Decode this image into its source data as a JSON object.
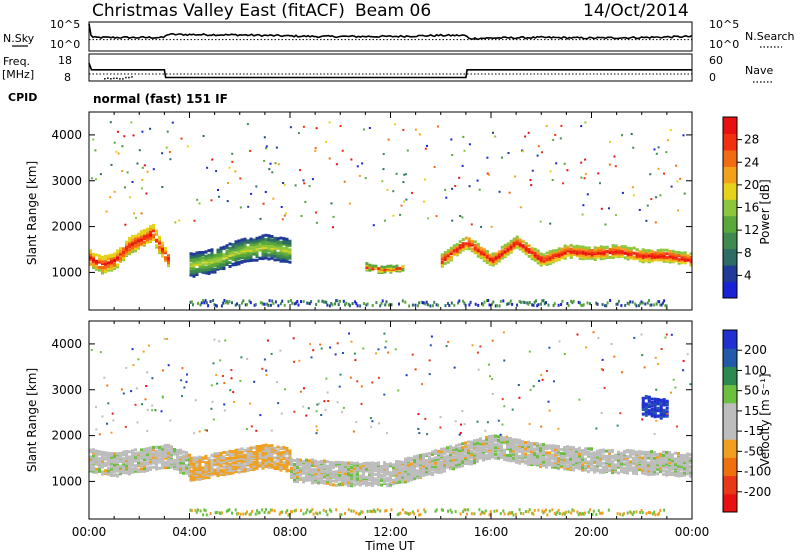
{
  "header": {
    "title": "Christmas Valley East (fitACF)",
    "beam": "Beam 06",
    "date": "14/Oct/2014"
  },
  "left_labels": {
    "nsky": "N.Sky",
    "freq": "Freq.",
    "freq_unit": "[MHz]",
    "cpid": "CPID"
  },
  "right_labels": {
    "nsearch": "N.Search",
    "nave": "Nave"
  },
  "cpid_text": "normal (fast) 151 IF",
  "colors": {
    "power_scale": [
      "#1a22d6",
      "#203a98",
      "#2e6b66",
      "#3f8a4e",
      "#5aa73a",
      "#8cc63e",
      "#e6d21a",
      "#f2a21a",
      "#f26a12",
      "#f23010",
      "#e81010"
    ],
    "velocity_scale": [
      "#2030d0",
      "#205aa8",
      "#2a8a50",
      "#6cc040",
      "#bdbdbd",
      "#bdbdbd",
      "#f0a020",
      "#f07010",
      "#e83818",
      "#e81010"
    ]
  },
  "chart_data": [
    {
      "type": "line",
      "title": "",
      "left_axis": {
        "label": "N.Sky",
        "ticks": [
          "10^5",
          "10^0"
        ]
      },
      "right_axis": {
        "label": "N.Search",
        "ticks": [
          "10^5",
          "10^0"
        ]
      },
      "series": [
        {
          "name": "N.Sky",
          "x": [
            0,
            0.1,
            3,
            3.1,
            6,
            9,
            12,
            14,
            15,
            15.1,
            16,
            18,
            20,
            22,
            24
          ],
          "y": [
            5,
            2.4,
            2.4,
            3.0,
            2.9,
            2.6,
            2.6,
            2.8,
            2.8,
            2.2,
            2.3,
            2.4,
            2.3,
            2.4,
            2.6
          ]
        },
        {
          "name": "N.Search",
          "x": [
            0,
            24
          ],
          "y": [
            2.0,
            2.0
          ]
        }
      ]
    },
    {
      "type": "line",
      "left_axis": {
        "label": "Freq. [MHz]",
        "ticks": [
          "18",
          "8"
        ]
      },
      "right_axis": {
        "label": "Nave",
        "ticks": [
          "60",
          "0"
        ]
      },
      "series": [
        {
          "name": "Freq.",
          "x": [
            0,
            0.1,
            3,
            3.05,
            15,
            15.05,
            24
          ],
          "y": [
            18,
            14,
            14,
            9.5,
            9.5,
            14,
            14
          ]
        },
        {
          "name": "Nave",
          "x": [
            0,
            24
          ],
          "y": [
            15,
            15
          ]
        }
      ]
    },
    {
      "type": "heatmap",
      "title": "",
      "xlabel": "",
      "ylabel": "Slant Range [km]",
      "x_ticks": [
        "00:00",
        "04:00",
        "08:00",
        "12:00",
        "16:00",
        "20:00",
        "00:00"
      ],
      "y_ticks": [
        1000,
        2000,
        3000,
        4000
      ],
      "ylim": [
        180,
        4500
      ],
      "colorbar": {
        "label": "Power [dB]",
        "ticks": [
          4,
          8,
          12,
          16,
          20,
          24,
          28
        ]
      },
      "bands": [
        {
          "x": [
            0,
            0.5,
            1,
            1.5,
            2,
            2.5,
            3,
            3.2
          ],
          "center": [
            1350,
            1200,
            1300,
            1600,
            1750,
            1900,
            1400,
            1300
          ],
          "width": 350,
          "level": 28
        },
        {
          "x": [
            4,
            5,
            6,
            7,
            8
          ],
          "center": [
            1200,
            1300,
            1500,
            1600,
            1500
          ],
          "width": 500,
          "level": 16
        },
        {
          "x": [
            11,
            11.5,
            12,
            12.5
          ],
          "center": [
            1150,
            1100,
            1100,
            1150
          ],
          "width": 120,
          "level": 24
        },
        {
          "x": [
            14,
            15,
            16,
            17,
            18,
            19,
            20,
            21,
            22,
            23,
            24
          ],
          "center": [
            1300,
            1700,
            1300,
            1700,
            1300,
            1500,
            1450,
            1500,
            1400,
            1400,
            1300
          ],
          "width": 250,
          "level": 28
        }
      ]
    },
    {
      "type": "heatmap",
      "title": "",
      "xlabel": "Time UT",
      "ylabel": "Slant Range [km]",
      "x_ticks": [
        "00:00",
        "04:00",
        "08:00",
        "12:00",
        "16:00",
        "20:00",
        "00:00"
      ],
      "y_ticks": [
        1000,
        2000,
        3000,
        4000
      ],
      "ylim": [
        180,
        4500
      ],
      "colorbar": {
        "label": "Velocity [m s⁻¹]",
        "ticks": [
          200,
          100,
          50,
          15,
          -15,
          -50,
          -100,
          -200
        ]
      },
      "bands": [
        {
          "x": [
            0,
            1,
            2,
            3,
            4
          ],
          "center": [
            1500,
            1400,
            1500,
            1600,
            1400
          ],
          "width": 500,
          "level": 0
        },
        {
          "x": [
            4,
            5,
            6,
            7,
            8
          ],
          "center": [
            1300,
            1400,
            1500,
            1600,
            1500
          ],
          "width": 500,
          "level": -50
        },
        {
          "x": [
            8,
            10,
            12,
            14,
            16,
            18,
            20,
            22,
            24
          ],
          "center": [
            1300,
            1200,
            1200,
            1500,
            1800,
            1600,
            1500,
            1450,
            1400
          ],
          "width": 500,
          "level": 0
        },
        {
          "x": [
            22,
            23
          ],
          "center": [
            2700,
            2600
          ],
          "width": 400,
          "level": 200
        }
      ]
    }
  ]
}
